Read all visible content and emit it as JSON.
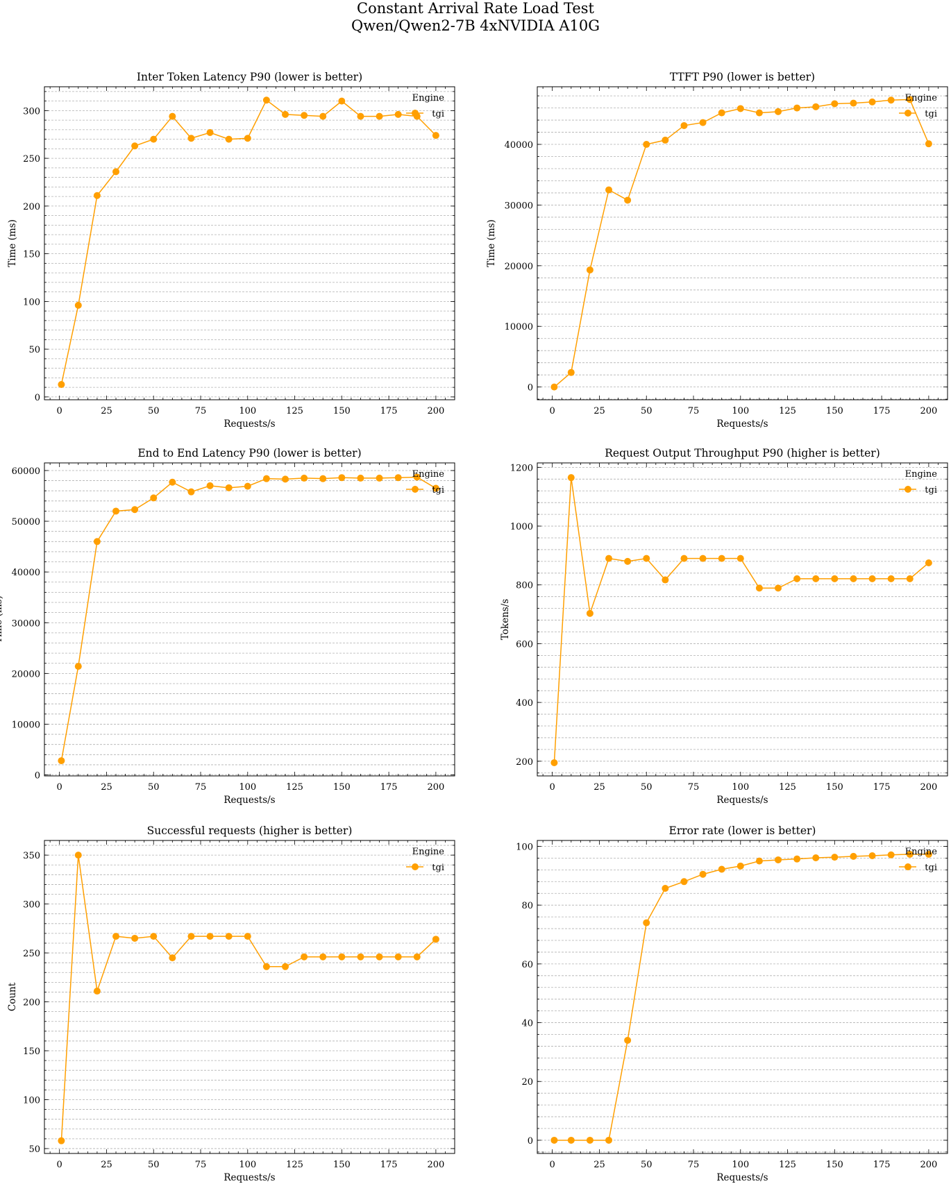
{
  "figure": {
    "title": "Constant Arrival Rate Load Test",
    "subtitle": "Qwen/Qwen2-7B 4xNVIDIA A10G"
  },
  "colors": {
    "series": "#ff9f00",
    "grid": "#b0b0b0",
    "axis": "#000000"
  },
  "chart_data": [
    {
      "type": "line",
      "title": "Inter Token Latency P90 (lower is better)",
      "xlabel": "Requests/s",
      "ylabel": "Time (ms)",
      "xlim": [
        -8,
        210
      ],
      "ylim": [
        -3,
        325
      ],
      "xticks": [
        "0",
        "25",
        "50",
        "75",
        "100",
        "125",
        "150",
        "175",
        "200"
      ],
      "yticks": [
        "0",
        "50",
        "100",
        "150",
        "200",
        "250",
        "300"
      ],
      "grid": true,
      "legend_title": "Engine",
      "legend_placement": "top-right",
      "x": [
        1,
        10,
        20,
        30,
        40,
        50,
        60,
        70,
        80,
        90,
        100,
        110,
        120,
        130,
        140,
        150,
        160,
        170,
        180,
        190,
        200
      ],
      "series": [
        {
          "name": "tgi",
          "values": [
            13,
            96,
            211,
            236,
            263,
            270,
            294,
            271,
            277,
            270,
            271,
            311,
            296,
            295,
            294,
            310,
            294,
            294,
            296,
            294,
            274
          ]
        }
      ]
    },
    {
      "type": "line",
      "title": "TTFT P90 (lower is better)",
      "xlabel": "Requests/s",
      "ylabel": "Time (ms)",
      "xlim": [
        -8,
        210
      ],
      "ylim": [
        -2100,
        49500
      ],
      "xticks": [
        "0",
        "25",
        "50",
        "75",
        "100",
        "125",
        "150",
        "175",
        "200"
      ],
      "yticks": [
        "0",
        "10000",
        "20000",
        "30000",
        "40000"
      ],
      "grid": true,
      "legend_title": "Engine",
      "legend_placement": "top-right",
      "x": [
        1,
        10,
        20,
        30,
        40,
        50,
        60,
        70,
        80,
        90,
        100,
        110,
        120,
        130,
        140,
        150,
        160,
        170,
        180,
        190,
        200
      ],
      "series": [
        {
          "name": "tgi",
          "values": [
            0,
            2400,
            19300,
            32500,
            30800,
            40000,
            40700,
            43100,
            43600,
            45200,
            45900,
            45200,
            45400,
            46000,
            46200,
            46700,
            46800,
            47000,
            47300,
            47400,
            40100
          ]
        }
      ]
    },
    {
      "type": "line",
      "title": "End to End Latency P90 (lower is better)",
      "xlabel": "Requests/s",
      "ylabel": "Time (ms)",
      "xlim": [
        -8,
        210
      ],
      "ylim": [
        -200,
        61500
      ],
      "xticks": [
        "0",
        "25",
        "50",
        "75",
        "100",
        "125",
        "150",
        "175",
        "200"
      ],
      "yticks": [
        "0",
        "10000",
        "20000",
        "30000",
        "40000",
        "50000",
        "60000"
      ],
      "grid": true,
      "legend_title": "Engine",
      "legend_placement": "top-right",
      "x": [
        1,
        10,
        20,
        30,
        40,
        50,
        60,
        70,
        80,
        90,
        100,
        110,
        120,
        130,
        140,
        150,
        160,
        170,
        180,
        190,
        200
      ],
      "series": [
        {
          "name": "tgi",
          "values": [
            2800,
            21400,
            46000,
            52000,
            52300,
            54600,
            57700,
            55800,
            57000,
            56600,
            56900,
            58400,
            58300,
            58500,
            58400,
            58600,
            58500,
            58500,
            58600,
            58700,
            56500
          ]
        }
      ]
    },
    {
      "type": "line",
      "title": "Request Output Throughput P90 (higher is better)",
      "xlabel": "Requests/s",
      "ylabel": "Tokens/s",
      "xlim": [
        -8,
        210
      ],
      "ylim": [
        150,
        1215
      ],
      "xticks": [
        "0",
        "25",
        "50",
        "75",
        "100",
        "125",
        "150",
        "175",
        "200"
      ],
      "yticks": [
        "200",
        "400",
        "600",
        "800",
        "1000",
        "1200"
      ],
      "grid": true,
      "legend_title": "Engine",
      "legend_placement": "top-right",
      "x": [
        1,
        10,
        20,
        30,
        40,
        50,
        60,
        70,
        80,
        90,
        100,
        110,
        120,
        130,
        140,
        150,
        160,
        170,
        180,
        190,
        200
      ],
      "series": [
        {
          "name": "tgi",
          "values": [
            195,
            1165,
            703,
            890,
            880,
            890,
            817,
            890,
            890,
            890,
            890,
            789,
            789,
            821,
            821,
            821,
            821,
            821,
            821,
            821,
            875
          ]
        }
      ]
    },
    {
      "type": "line",
      "title": "Successful requests (higher is better)",
      "xlabel": "Requests/s",
      "ylabel": "Count",
      "xlim": [
        -8,
        210
      ],
      "ylim": [
        45,
        365
      ],
      "xticks": [
        "0",
        "25",
        "50",
        "75",
        "100",
        "125",
        "150",
        "175",
        "200"
      ],
      "yticks": [
        "50",
        "100",
        "150",
        "200",
        "250",
        "300",
        "350"
      ],
      "grid": true,
      "legend_title": "Engine",
      "legend_placement": "top-right",
      "x": [
        1,
        10,
        20,
        30,
        40,
        50,
        60,
        70,
        80,
        90,
        100,
        110,
        120,
        130,
        140,
        150,
        160,
        170,
        180,
        190,
        200
      ],
      "series": [
        {
          "name": "tgi",
          "values": [
            58,
            350,
            211,
            267,
            265,
            267,
            245,
            267,
            267,
            267,
            267,
            236,
            236,
            246,
            246,
            246,
            246,
            246,
            246,
            246,
            264
          ]
        }
      ]
    },
    {
      "type": "line",
      "title": "Error rate (lower is better)",
      "xlabel": "Requests/s",
      "ylabel": "",
      "xlim": [
        -8,
        210
      ],
      "ylim": [
        -4.5,
        102
      ],
      "xticks": [
        "0",
        "25",
        "50",
        "75",
        "100",
        "125",
        "150",
        "175",
        "200"
      ],
      "yticks": [
        "0",
        "20",
        "40",
        "60",
        "80",
        "100"
      ],
      "grid": true,
      "legend_title": "Engine",
      "legend_placement": "top-right",
      "x": [
        1,
        10,
        20,
        30,
        40,
        50,
        60,
        70,
        80,
        90,
        100,
        110,
        120,
        130,
        140,
        150,
        160,
        170,
        180,
        190,
        200
      ],
      "series": [
        {
          "name": "tgi",
          "values": [
            0,
            0,
            0,
            0,
            34,
            74,
            85.7,
            88,
            90.5,
            92.2,
            93.3,
            95,
            95.4,
            95.7,
            96.1,
            96.3,
            96.6,
            96.8,
            97.1,
            97.3,
            97.3
          ]
        }
      ]
    }
  ]
}
